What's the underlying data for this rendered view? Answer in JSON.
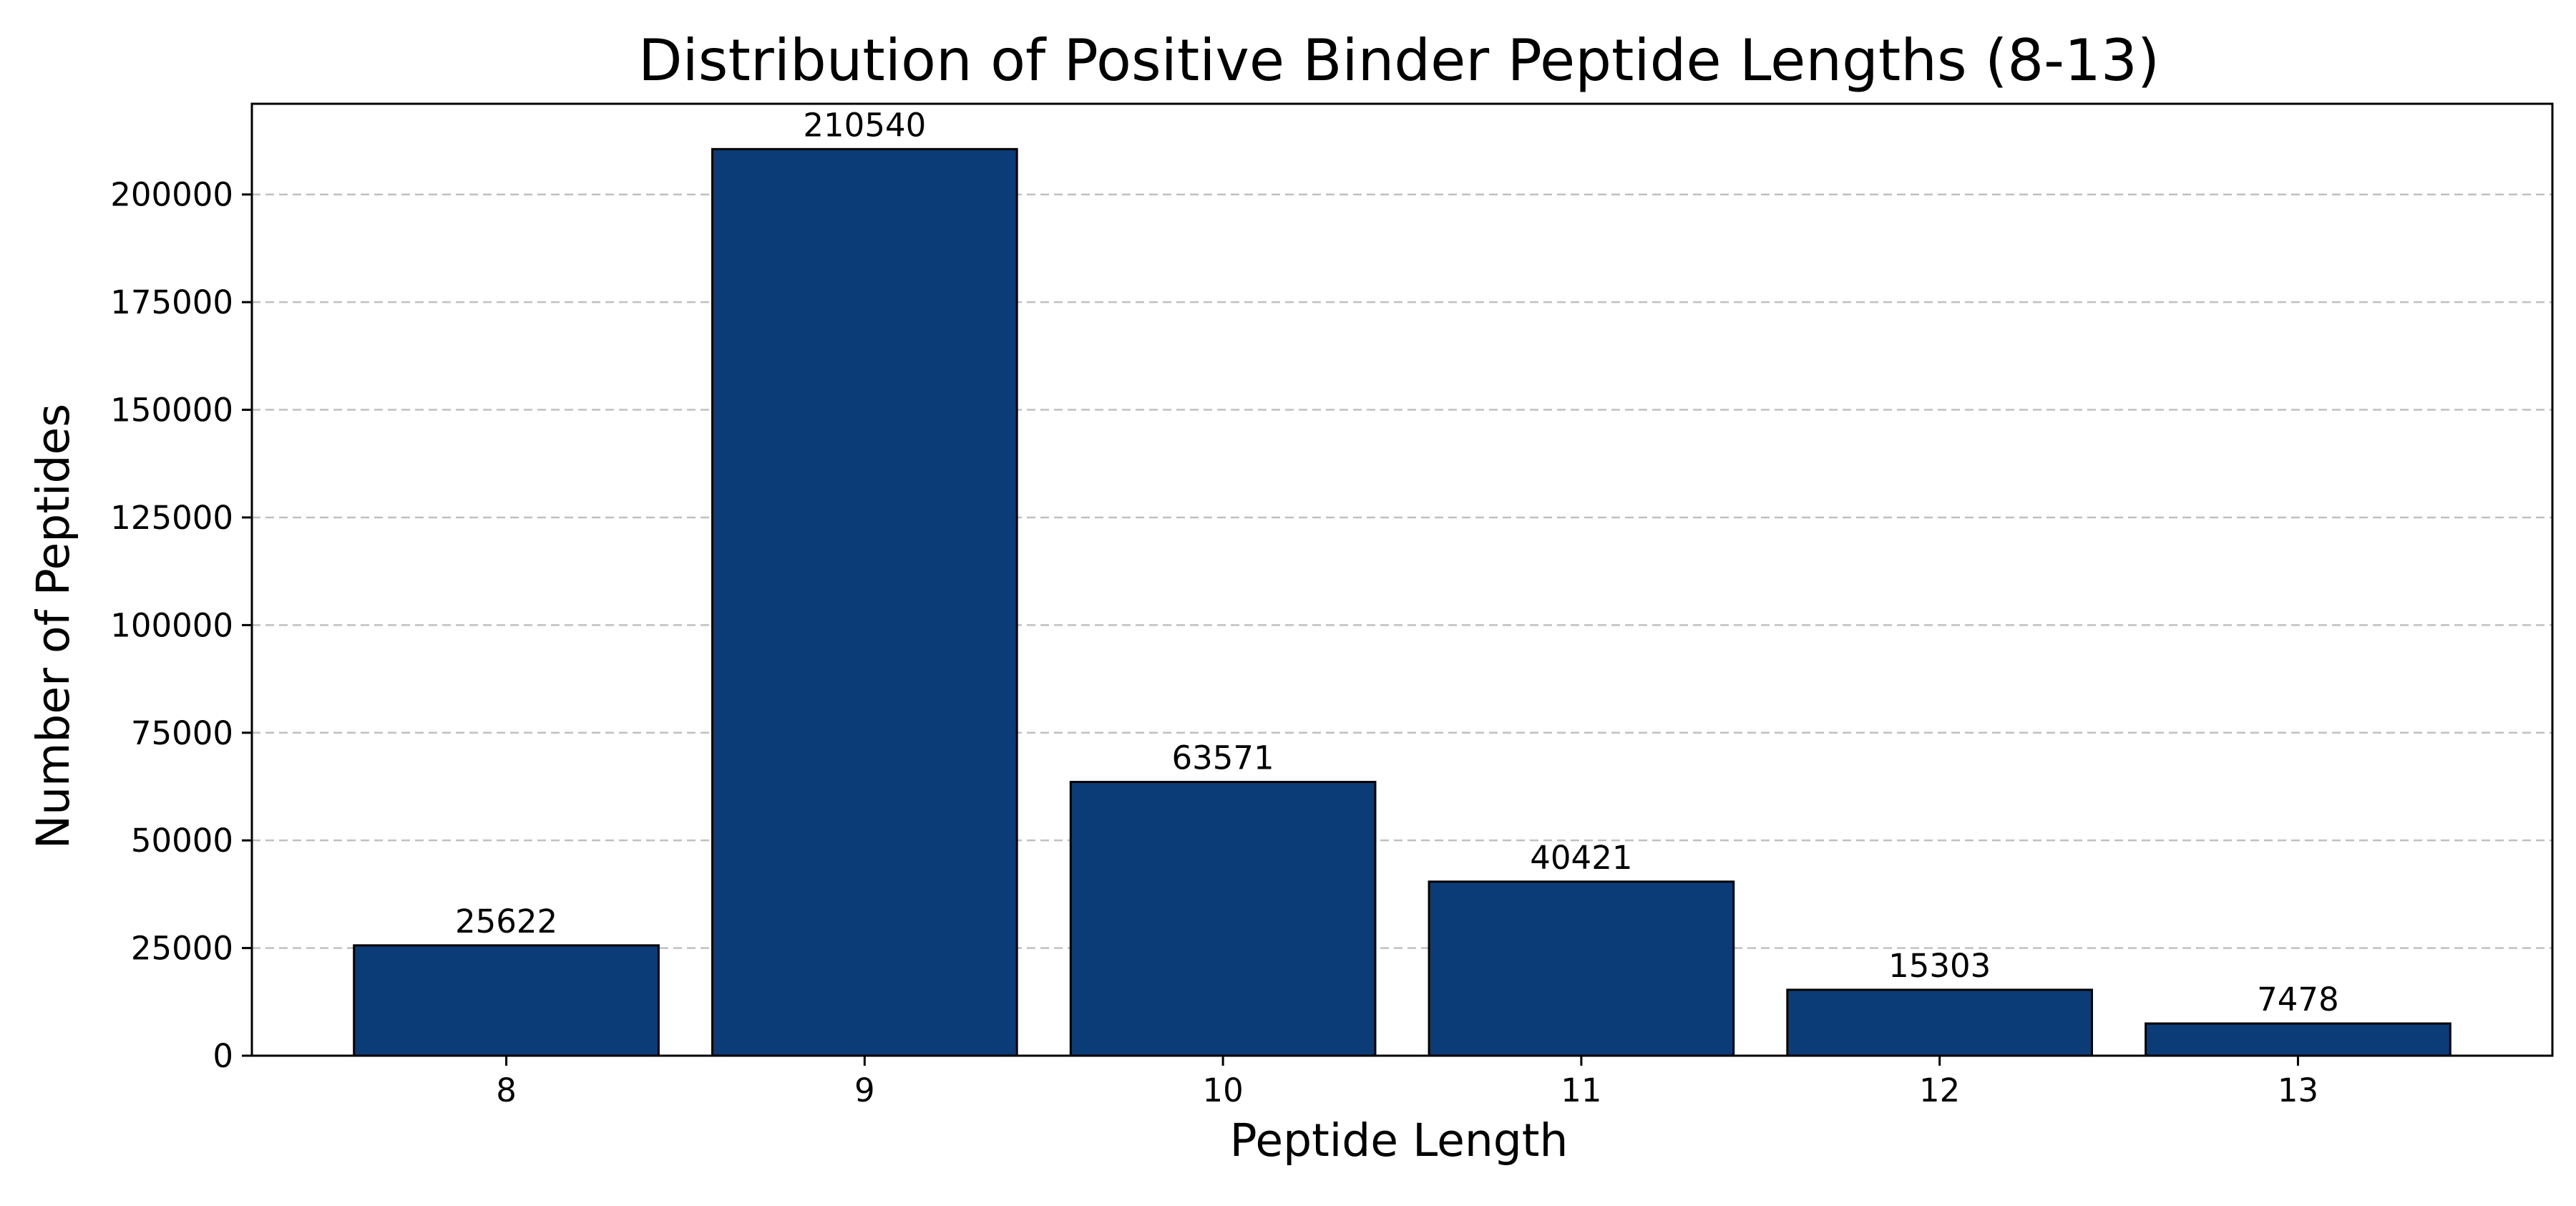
{
  "chart_data": {
    "type": "bar",
    "title": "Distribution of Positive Binder Peptide Lengths (8-13)",
    "xlabel": "Peptide Length",
    "ylabel": "Number of Peptides",
    "categories": [
      "8",
      "9",
      "10",
      "11",
      "12",
      "13"
    ],
    "values": [
      25622,
      210540,
      63571,
      40421,
      15303,
      7478
    ],
    "data_labels": [
      "25622",
      "210540",
      "63571",
      "40421",
      "15303",
      "7478"
    ],
    "ylim": [
      0,
      221067
    ],
    "yticks": [
      0,
      25000,
      50000,
      75000,
      100000,
      125000,
      150000,
      175000,
      200000
    ],
    "ytick_labels": [
      "0",
      "25000",
      "50000",
      "75000",
      "100000",
      "125000",
      "150000",
      "175000",
      "200000"
    ],
    "grid": {
      "axis": "y",
      "style": "dashed"
    },
    "legend": "none",
    "colors": {
      "bar_fill": "#0b3c78",
      "bar_edge": "#000000",
      "grid": "#c0c0c0",
      "axes": "#000000"
    }
  }
}
